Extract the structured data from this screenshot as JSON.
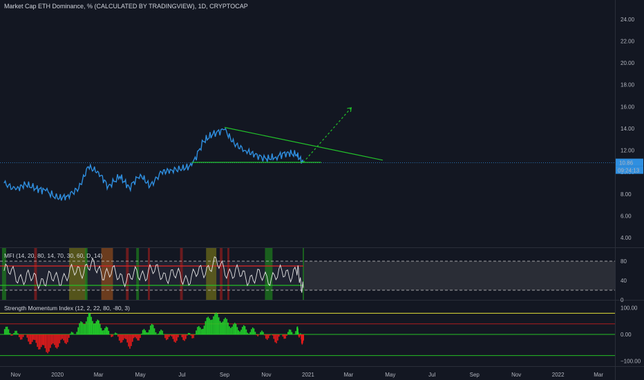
{
  "header": {
    "title": "Market Cap ETH Dominance, % (CALCULATED BY TRADINGVIEW), 1D, CRYPTOCAP"
  },
  "price_labels": {
    "last_value": "10.86",
    "countdown": "09:24:13"
  },
  "mfi": {
    "title": "MFI (14, 20, 80, 14, 70, 30, 60, D, 14)",
    "ticks": [
      "80",
      "40",
      "0"
    ]
  },
  "smi": {
    "title": "Strength Momentum Index (12, 2, 22, 80, -80, 3)",
    "ticks": [
      "100.00",
      "0.00",
      "−100.00"
    ]
  },
  "colors": {
    "background": "#131722",
    "line": "#2f8fe0",
    "trend": "#22c22a",
    "up": "#22d42a",
    "down": "#e81b1b",
    "band_red": "#e02525",
    "band_green": "#25c025",
    "price_label": "#2f8fe0"
  },
  "chart_data": [
    {
      "type": "line",
      "title": "Market Cap ETH Dominance, % (CALCULATED BY TRADINGVIEW), 1D, CRYPTOCAP",
      "xlabel": "",
      "ylabel": "",
      "x_ticks": [
        "Nov",
        "2020",
        "Mar",
        "May",
        "Jul",
        "Sep",
        "Nov",
        "2021",
        "Mar",
        "May",
        "Jul",
        "Sep",
        "Nov",
        "2022",
        "Mar"
      ],
      "y_ticks": [
        "24.00",
        "22.00",
        "20.00",
        "18.00",
        "16.00",
        "14.00",
        "12.00",
        "10.00",
        "8.00",
        "6.00",
        "4.00"
      ],
      "ylim": [
        3.5,
        25
      ],
      "grid": false,
      "series": [
        {
          "x": [
            "2019-10-15",
            "2019-11-01",
            "2019-11-15",
            "2019-12-01",
            "2019-12-15",
            "2020-01-01",
            "2020-01-15",
            "2020-02-01",
            "2020-02-15",
            "2020-03-01",
            "2020-03-15",
            "2020-04-01",
            "2020-04-15",
            "2020-05-01",
            "2020-05-15",
            "2020-06-01",
            "2020-06-15",
            "2020-07-01",
            "2020-07-15",
            "2020-08-01",
            "2020-08-15",
            "2020-09-01",
            "2020-09-15",
            "2020-10-01",
            "2020-10-15",
            "2020-11-01",
            "2020-11-15",
            "2020-12-01",
            "2020-12-15",
            "2020-12-25"
          ],
          "values": [
            9.0,
            8.4,
            8.9,
            8.5,
            8.3,
            7.6,
            7.8,
            8.5,
            10.5,
            10.0,
            8.7,
            9.6,
            8.6,
            9.8,
            8.7,
            10.0,
            10.2,
            10.3,
            10.6,
            12.8,
            13.5,
            13.9,
            12.6,
            12.0,
            11.6,
            11.2,
            11.4,
            11.8,
            11.6,
            10.86
          ]
        }
      ],
      "trendlines": [
        {
          "name": "resistance",
          "from": [
            "2020-09-01",
            14.1
          ],
          "to": [
            "2021-04-20",
            11.1
          ]
        },
        {
          "name": "support",
          "from": [
            "2020-07-15",
            10.9
          ],
          "to": [
            "2021-01-20",
            10.9
          ]
        },
        {
          "name": "projection",
          "from": [
            "2020-12-25",
            10.9
          ],
          "to": [
            "2021-03-05",
            15.9
          ]
        }
      ]
    },
    {
      "type": "line",
      "title": "MFI (14, 20, 80, 14, 70, 30, 60, D, 14)",
      "ylim": [
        0,
        100
      ],
      "bands": {
        "upper": 80,
        "lower": 20,
        "red": 70,
        "green": 30
      },
      "series": [
        {
          "x": [
            "2019-10-15",
            "2019-11-15",
            "2019-12-15",
            "2020-01-15",
            "2020-02-15",
            "2020-03-15",
            "2020-04-15",
            "2020-05-15",
            "2020-06-15",
            "2020-07-15",
            "2020-08-15",
            "2020-09-15",
            "2020-10-15",
            "2020-11-15",
            "2020-12-15",
            "2020-12-25"
          ],
          "values": [
            60,
            45,
            40,
            50,
            70,
            55,
            45,
            60,
            50,
            45,
            75,
            55,
            45,
            50,
            60,
            25
          ]
        }
      ]
    },
    {
      "type": "bar",
      "title": "Strength Momentum Index (12, 2, 22, 80, -80, 3)",
      "ylim": [
        -115,
        115
      ],
      "levels": [
        80,
        40,
        0,
        -80
      ],
      "x": [
        "2019-10-15",
        "2019-11-15",
        "2019-12-15",
        "2020-01-15",
        "2020-02-15",
        "2020-03-15",
        "2020-04-15",
        "2020-05-15",
        "2020-06-15",
        "2020-07-15",
        "2020-08-15",
        "2020-09-15",
        "2020-10-15",
        "2020-11-15",
        "2020-12-15",
        "2020-12-25"
      ],
      "values": [
        20,
        -15,
        -60,
        -20,
        70,
        10,
        -40,
        30,
        -20,
        -5,
        75,
        30,
        10,
        -20,
        20,
        -40
      ]
    }
  ]
}
